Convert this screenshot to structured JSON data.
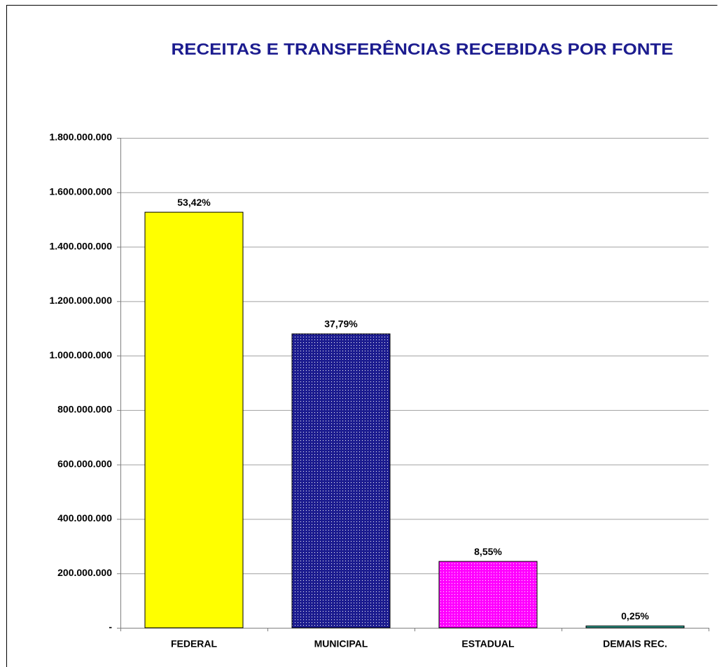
{
  "chart_data": {
    "type": "bar",
    "title": "RECEITAS E TRANSFERÊNCIAS RECEBIDAS POR FONTE",
    "categories": [
      "FEDERAL",
      "MUNICIPAL",
      "ESTADUAL",
      "DEMAIS REC."
    ],
    "values": [
      1527000000,
      1080000000,
      244000000,
      7000000
    ],
    "percent_labels": [
      "53,42%",
      "37,79%",
      "8,55%",
      "0,25%"
    ],
    "colors": [
      "#ffff00",
      "#1c1c8f",
      "#ff00ff",
      "#33aa99"
    ],
    "patterns": [
      false,
      true,
      true,
      false
    ],
    "ylim": [
      0,
      1800000000
    ],
    "yticks": [
      {
        "value": 0,
        "label": "-"
      },
      {
        "value": 200000000,
        "label": "200.000.000"
      },
      {
        "value": 400000000,
        "label": "400.000.000"
      },
      {
        "value": 600000000,
        "label": "600.000.000"
      },
      {
        "value": 800000000,
        "label": "800.000.000"
      },
      {
        "value": 1000000000,
        "label": "1.000.000.000"
      },
      {
        "value": 1200000000,
        "label": "1.200.000.000"
      },
      {
        "value": 1400000000,
        "label": "1.400.000.000"
      },
      {
        "value": 1600000000,
        "label": "1.600.000.000"
      },
      {
        "value": 1800000000,
        "label": "1.800.000.000"
      }
    ],
    "grid": true
  }
}
